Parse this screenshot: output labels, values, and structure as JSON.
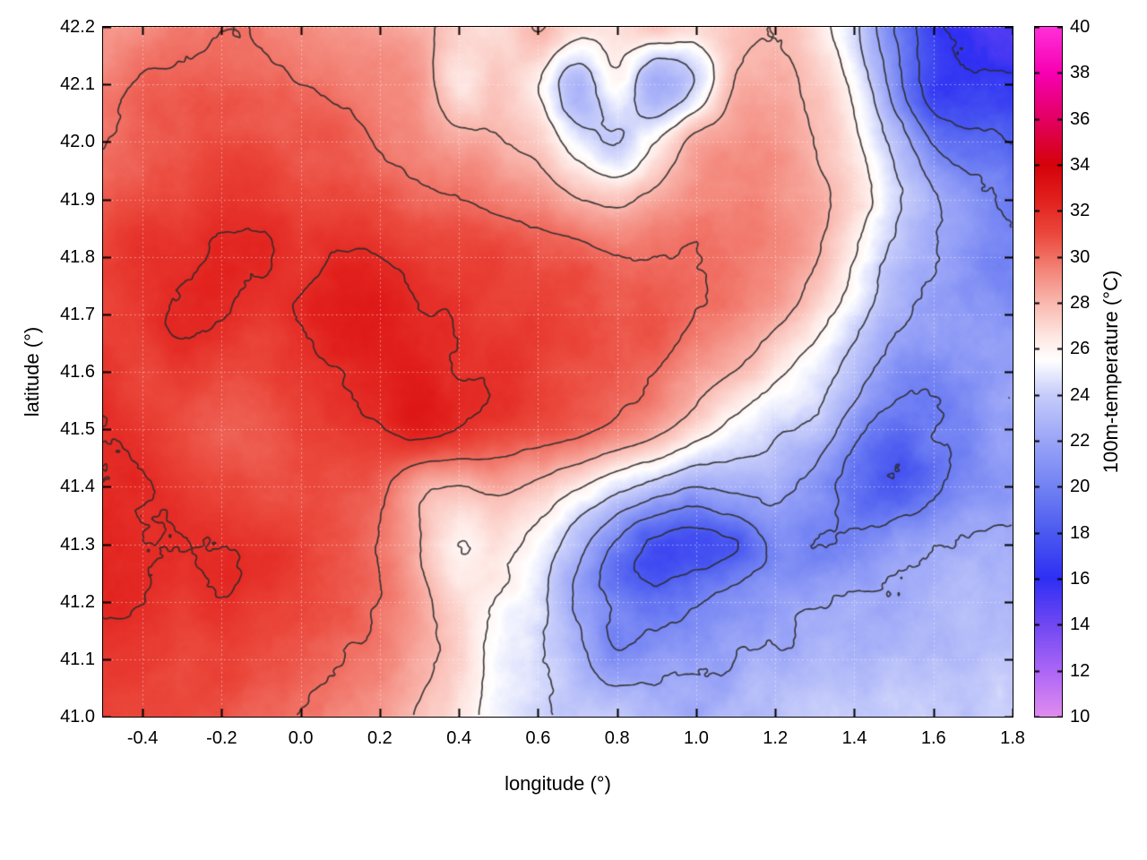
{
  "figure": {
    "background": "#ffffff",
    "colors": {
      "contour": "#2a2a2a",
      "axis": "#000000",
      "grid_line": "#ffffff"
    }
  },
  "chart_data": {
    "type": "heatmap",
    "title": "",
    "xlabel": "longitude (°)",
    "ylabel": "latitude (°)",
    "colorbar_label": "100m-temperature (°C)",
    "xlim": [
      -0.5,
      1.8
    ],
    "ylim": [
      41.0,
      42.2
    ],
    "zlim": [
      10,
      40
    ],
    "grid_on": true,
    "legend_position": "right-colorbar",
    "x_ticks": [
      -0.4,
      -0.2,
      0.0,
      0.2,
      0.4,
      0.6,
      0.8,
      1.0,
      1.2,
      1.4,
      1.6,
      1.8
    ],
    "x_tick_labels": [
      "-0.4",
      "-0.2",
      "0.0",
      "0.2",
      "0.4",
      "0.6",
      "0.8",
      "1.0",
      "1.2",
      "1.4",
      "1.6",
      "1.8"
    ],
    "y_ticks": [
      41.0,
      41.1,
      41.2,
      41.3,
      41.4,
      41.5,
      41.6,
      41.7,
      41.8,
      41.9,
      42.0,
      42.1,
      42.2
    ],
    "y_tick_labels": [
      "41.0",
      "41.1",
      "41.2",
      "41.3",
      "41.4",
      "41.5",
      "41.6",
      "41.7",
      "41.8",
      "41.9",
      "42.0",
      "42.1",
      "42.2"
    ],
    "colorbar_ticks": [
      10,
      12,
      14,
      16,
      18,
      20,
      22,
      24,
      26,
      28,
      30,
      32,
      34,
      36,
      38,
      40
    ],
    "colorbar_tick_labels": [
      "10",
      "12",
      "14",
      "16",
      "18",
      "20",
      "22",
      "24",
      "26",
      "28",
      "30",
      "32",
      "34",
      "36",
      "38",
      "40"
    ],
    "contour_levels": [
      16,
      18,
      20,
      22,
      24,
      26,
      28,
      30,
      32
    ],
    "grid": {
      "lon_start": -0.5,
      "lon_step": 0.1,
      "lat_start": 42.2,
      "lat_step": -0.1,
      "rows": "north-to-south"
    },
    "values": [
      [
        29,
        29,
        29.5,
        30,
        30,
        29.5,
        29,
        29,
        28.5,
        27.5,
        27,
        28,
        26.5,
        26.5,
        27.5,
        27,
        27.5,
        28,
        27,
        24.5,
        20,
        16.5,
        15.5,
        15.5
      ],
      [
        29.5,
        30,
        30,
        30.5,
        30.5,
        30,
        29.5,
        29.5,
        29,
        26.5,
        27.5,
        26,
        22.5,
        25.5,
        22,
        24,
        28,
        28.5,
        27.5,
        25.5,
        21.5,
        17,
        16,
        16
      ],
      [
        30,
        30.5,
        30.5,
        31,
        31,
        30.5,
        30.5,
        30,
        29.5,
        28.5,
        28,
        27.5,
        25,
        24,
        26,
        28.5,
        29,
        29,
        28,
        26.5,
        23.5,
        20,
        18.5,
        17.5
      ],
      [
        30.5,
        31,
        31,
        31.5,
        31.5,
        31,
        31,
        31,
        30.5,
        30,
        29.5,
        29,
        28,
        27.5,
        28.5,
        29.5,
        29.5,
        29,
        28.5,
        27,
        24.5,
        22,
        20.5,
        19.5
      ],
      [
        31,
        31.5,
        31.5,
        32,
        32,
        31.5,
        32,
        32,
        31.5,
        31,
        31,
        30.5,
        30.5,
        30,
        30,
        30,
        29.5,
        29,
        28,
        26,
        23.5,
        22,
        21,
        20.5
      ],
      [
        31,
        31.5,
        32,
        32,
        31.5,
        32,
        32.5,
        32.5,
        32,
        32,
        31.5,
        31.5,
        31,
        30.5,
        30.5,
        30,
        29.5,
        28.5,
        27,
        25,
        22.5,
        21.5,
        21,
        20.5
      ],
      [
        31.5,
        31,
        31.5,
        31,
        31,
        31.5,
        32,
        32.5,
        32.5,
        32,
        32,
        31.5,
        31,
        30.5,
        30,
        29,
        28,
        26.5,
        25,
        23,
        21,
        20.5,
        21.5,
        22
      ],
      [
        32,
        31.5,
        31,
        30.5,
        30.5,
        31,
        31.5,
        32,
        32.5,
        32,
        31.5,
        31,
        30.5,
        29.5,
        28.5,
        27,
        25.5,
        24.5,
        23.5,
        20.5,
        19,
        20,
        21,
        21.5
      ],
      [
        32,
        32,
        31.5,
        31,
        30.5,
        31,
        31,
        30.5,
        28.5,
        28,
        28.5,
        27.5,
        26,
        24.5,
        23,
        22,
        22.5,
        23,
        21.5,
        19,
        18.5,
        20,
        21,
        21.5
      ],
      [
        32.5,
        32,
        32,
        32,
        31.5,
        31.5,
        31,
        30,
        28,
        26,
        26.5,
        25,
        22.5,
        19.5,
        17.5,
        17,
        18,
        20.5,
        20,
        20.5,
        21,
        21.5,
        22,
        22
      ],
      [
        32,
        32,
        31.5,
        32,
        31.5,
        31,
        30.5,
        30,
        28.5,
        27,
        26,
        24.5,
        21.5,
        19,
        18.5,
        19.5,
        20.5,
        21,
        21.5,
        22,
        22,
        22.5,
        22.5,
        22.5
      ],
      [
        31.5,
        31.5,
        31,
        31.5,
        31,
        30.5,
        30,
        29.5,
        28.5,
        27.5,
        25.5,
        24,
        22.5,
        20,
        21,
        21.5,
        22,
        22,
        22.5,
        22.5,
        23,
        23,
        23,
        23
      ],
      [
        31,
        31,
        31,
        31,
        30.5,
        30,
        29.5,
        29,
        28,
        27,
        25.5,
        24.5,
        23.5,
        23,
        23,
        23,
        23,
        23,
        23.5,
        23.5,
        23.5,
        23.5,
        23.5,
        23.5
      ]
    ],
    "palette_stops": [
      [
        10,
        225,
        140,
        238
      ],
      [
        12,
        172,
        102,
        246
      ],
      [
        14,
        112,
        72,
        243
      ],
      [
        16,
        47,
        47,
        243
      ],
      [
        18,
        75,
        90,
        240
      ],
      [
        20,
        114,
        130,
        243
      ],
      [
        22,
        154,
        165,
        247
      ],
      [
        24,
        198,
        204,
        250
      ],
      [
        25.5,
        255,
        255,
        255
      ],
      [
        26.5,
        254,
        232,
        228
      ],
      [
        28,
        249,
        184,
        175
      ],
      [
        29.5,
        243,
        130,
        118
      ],
      [
        31,
        235,
        72,
        60
      ],
      [
        32.5,
        225,
        32,
        28
      ],
      [
        34,
        213,
        2,
        10
      ],
      [
        36,
        227,
        0,
        98
      ],
      [
        38,
        247,
        0,
        178
      ],
      [
        40,
        255,
        48,
        216
      ]
    ]
  }
}
